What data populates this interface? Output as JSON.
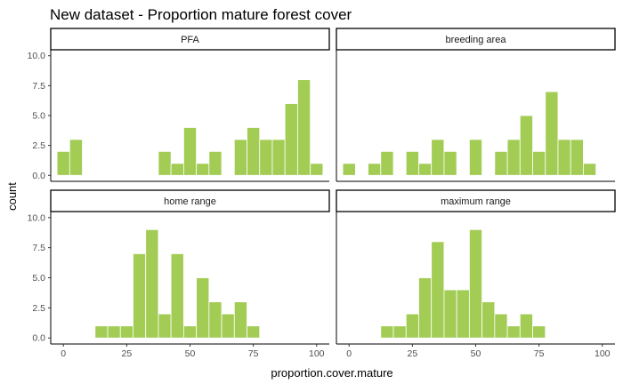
{
  "chart_data": {
    "type": "bar",
    "title": "New dataset - Proportion mature forest cover",
    "xlabel": "proportion.cover.mature",
    "ylabel": "count",
    "xlim": [
      -5,
      105
    ],
    "ylim": [
      0,
      10
    ],
    "x_ticks": [
      0,
      25,
      50,
      75,
      100
    ],
    "y_ticks": [
      0,
      2.5,
      5,
      7.5,
      10
    ],
    "y_tick_labels": [
      "0.0",
      "2.5",
      "5.0",
      "7.5",
      "10.0"
    ],
    "bin_width": 5,
    "bar_color": "#a3cc55",
    "bar_outline_color": "#ffffff",
    "grid": false,
    "facets": [
      {
        "name": "PFA",
        "bins": [
          {
            "x": 0,
            "count": 2
          },
          {
            "x": 5,
            "count": 3
          },
          {
            "x": 40,
            "count": 2
          },
          {
            "x": 45,
            "count": 1
          },
          {
            "x": 50,
            "count": 4
          },
          {
            "x": 55,
            "count": 1
          },
          {
            "x": 60,
            "count": 2
          },
          {
            "x": 70,
            "count": 3
          },
          {
            "x": 75,
            "count": 4
          },
          {
            "x": 80,
            "count": 3
          },
          {
            "x": 85,
            "count": 3
          },
          {
            "x": 90,
            "count": 6
          },
          {
            "x": 95,
            "count": 8
          },
          {
            "x": 100,
            "count": 1
          }
        ]
      },
      {
        "name": "breeding area",
        "bins": [
          {
            "x": 0,
            "count": 1
          },
          {
            "x": 10,
            "count": 1
          },
          {
            "x": 15,
            "count": 2
          },
          {
            "x": 25,
            "count": 2
          },
          {
            "x": 30,
            "count": 1
          },
          {
            "x": 35,
            "count": 3
          },
          {
            "x": 40,
            "count": 2
          },
          {
            "x": 50,
            "count": 3
          },
          {
            "x": 60,
            "count": 2
          },
          {
            "x": 65,
            "count": 3
          },
          {
            "x": 70,
            "count": 5
          },
          {
            "x": 75,
            "count": 2
          },
          {
            "x": 80,
            "count": 7
          },
          {
            "x": 85,
            "count": 3
          },
          {
            "x": 90,
            "count": 3
          },
          {
            "x": 95,
            "count": 1
          }
        ]
      },
      {
        "name": "home range",
        "bins": [
          {
            "x": 15,
            "count": 1
          },
          {
            "x": 20,
            "count": 1
          },
          {
            "x": 25,
            "count": 1
          },
          {
            "x": 30,
            "count": 7
          },
          {
            "x": 35,
            "count": 9
          },
          {
            "x": 40,
            "count": 2
          },
          {
            "x": 45,
            "count": 7
          },
          {
            "x": 50,
            "count": 1
          },
          {
            "x": 55,
            "count": 5
          },
          {
            "x": 60,
            "count": 3
          },
          {
            "x": 65,
            "count": 2
          },
          {
            "x": 70,
            "count": 3
          },
          {
            "x": 75,
            "count": 1
          }
        ]
      },
      {
        "name": "maximum range",
        "bins": [
          {
            "x": 15,
            "count": 1
          },
          {
            "x": 20,
            "count": 1
          },
          {
            "x": 25,
            "count": 2
          },
          {
            "x": 30,
            "count": 5
          },
          {
            "x": 35,
            "count": 8
          },
          {
            "x": 40,
            "count": 4
          },
          {
            "x": 45,
            "count": 4
          },
          {
            "x": 50,
            "count": 9
          },
          {
            "x": 55,
            "count": 3
          },
          {
            "x": 60,
            "count": 2
          },
          {
            "x": 65,
            "count": 1
          },
          {
            "x": 70,
            "count": 2
          },
          {
            "x": 75,
            "count": 1
          }
        ]
      }
    ]
  }
}
